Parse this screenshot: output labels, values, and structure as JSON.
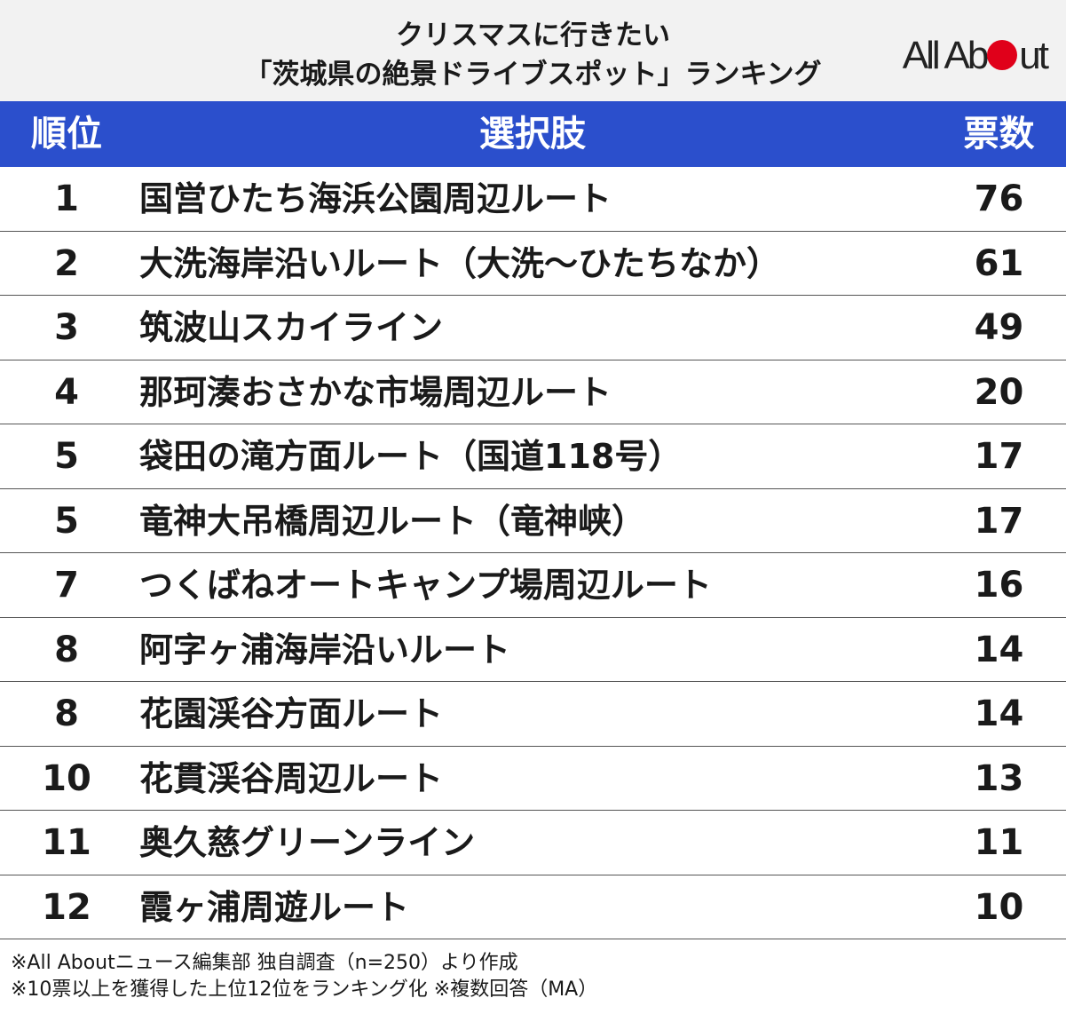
{
  "header": {
    "title_line1": "クリスマスに行きたい",
    "title_line2": "「茨城県の絶景ドライブスポット」ランキング",
    "logo_text_before": "All Ab",
    "logo_text_after": "ut"
  },
  "table": {
    "col_rank": "順位",
    "col_choice": "選択肢",
    "col_votes": "票数"
  },
  "chart_data": {
    "type": "table",
    "title": "クリスマスに行きたい「茨城県の絶景ドライブスポット」ランキング",
    "columns": [
      "順位",
      "選択肢",
      "票数"
    ],
    "rows": [
      {
        "rank": "1",
        "choice": "国営ひたち海浜公園周辺ルート",
        "votes": 76
      },
      {
        "rank": "2",
        "choice": "大洗海岸沿いルート（大洗～ひたちなか）",
        "votes": 61
      },
      {
        "rank": "3",
        "choice": "筑波山スカイライン",
        "votes": 49
      },
      {
        "rank": "4",
        "choice": "那珂湊おさかな市場周辺ルート",
        "votes": 20
      },
      {
        "rank": "5",
        "choice": "袋田の滝方面ルート（国道118号）",
        "votes": 17
      },
      {
        "rank": "5",
        "choice": "竜神大吊橋周辺ルート（竜神峡）",
        "votes": 17
      },
      {
        "rank": "7",
        "choice": "つくばねオートキャンプ場周辺ルート",
        "votes": 16
      },
      {
        "rank": "8",
        "choice": "阿字ヶ浦海岸沿いルート",
        "votes": 14
      },
      {
        "rank": "8",
        "choice": "花園渓谷方面ルート",
        "votes": 14
      },
      {
        "rank": "10",
        "choice": "花貫渓谷周辺ルート",
        "votes": 13
      },
      {
        "rank": "11",
        "choice": "奥久慈グリーンライン",
        "votes": 11
      },
      {
        "rank": "12",
        "choice": "霞ヶ浦周遊ルート",
        "votes": 10
      }
    ]
  },
  "notes": {
    "line1": "※All Aboutニュース編集部 独自調査（n=250）より作成",
    "line2": "※10票以上を獲得した上位12位をランキング化 ※複数回答（MA）"
  },
  "colors": {
    "header_bg": "#f2f2f2",
    "table_header_bg": "#2b4fcc",
    "logo_dot": "#e0001a"
  }
}
